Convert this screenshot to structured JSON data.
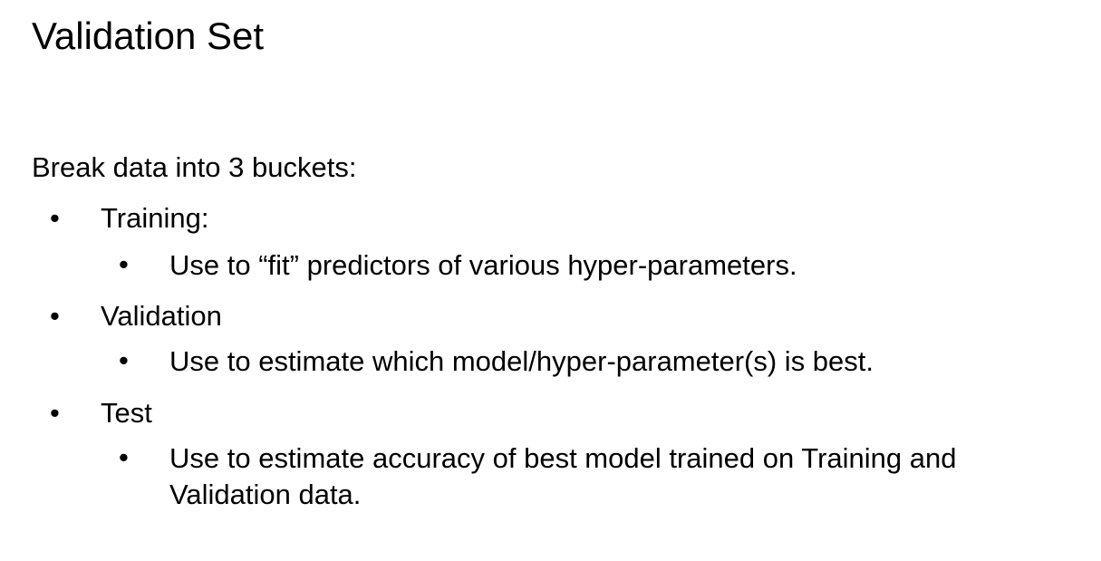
{
  "slide": {
    "title": "Validation Set",
    "intro": "Break data into 3 buckets:",
    "bullet_glyph": "•",
    "items": [
      {
        "label": "Training:",
        "sub": "Use to “fit” predictors of various hyper-parameters."
      },
      {
        "label": "Validation",
        "sub": "Use to estimate which model/hyper-parameter(s) is best."
      },
      {
        "label": "Test",
        "sub": "Use to estimate accuracy of best model trained on Training and Validation data."
      }
    ]
  }
}
